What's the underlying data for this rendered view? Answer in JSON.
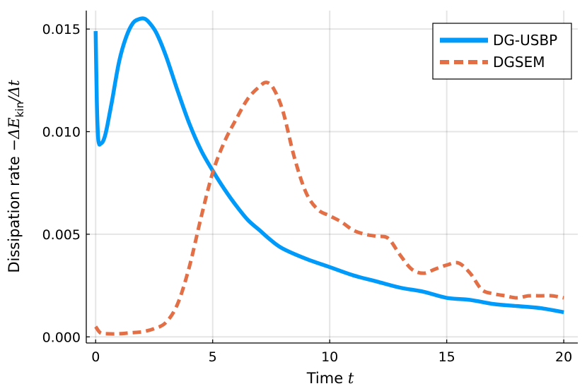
{
  "chart_data": {
    "type": "line",
    "xlabel": {
      "text": "Time ",
      "math": "t"
    },
    "ylabel": {
      "text": "Dissipation rate ",
      "math": "−ΔE",
      "sub": "kin",
      "math2": "/Δt"
    },
    "xlim": [
      -0.4,
      20.6
    ],
    "ylim": [
      -0.0003,
      0.0159
    ],
    "xticks": [
      0,
      5,
      10,
      15,
      20
    ],
    "xtick_labels": [
      "0",
      "5",
      "10",
      "15",
      "20"
    ],
    "yticks": [
      0.0,
      0.005,
      0.01,
      0.015
    ],
    "ytick_labels": [
      "0.000",
      "0.005",
      "0.010",
      "0.015"
    ],
    "grid": true,
    "legend_position": "top-right",
    "series": [
      {
        "name": "DG-USBP",
        "color": "#009AFA",
        "style": "solid",
        "x": [
          0,
          0.05,
          0.1,
          0.15,
          0.2,
          0.3,
          0.4,
          0.5,
          0.7,
          1.0,
          1.3,
          1.6,
          1.9,
          2.1,
          2.3,
          2.6,
          3.0,
          3.5,
          4.0,
          4.5,
          5.0,
          5.5,
          6.0,
          6.5,
          7.0,
          7.5,
          8.0,
          9.0,
          10.0,
          11.0,
          12.0,
          13.0,
          14.0,
          15.0,
          16.0,
          17.0,
          18.0,
          19.0,
          20.0
        ],
        "y": [
          0.0149,
          0.0115,
          0.0098,
          0.0094,
          0.0094,
          0.0095,
          0.0098,
          0.0103,
          0.0115,
          0.0134,
          0.0146,
          0.0153,
          0.0155,
          0.0155,
          0.0153,
          0.0148,
          0.0137,
          0.012,
          0.0104,
          0.0091,
          0.0081,
          0.0072,
          0.0064,
          0.0057,
          0.0052,
          0.0047,
          0.0043,
          0.0038,
          0.0034,
          0.003,
          0.0027,
          0.0024,
          0.0022,
          0.0019,
          0.0018,
          0.0016,
          0.0015,
          0.0014,
          0.0012
        ]
      },
      {
        "name": "DGSEM",
        "color": "#E26F46",
        "style": "dashed",
        "x": [
          0,
          0.2,
          0.5,
          1.0,
          1.5,
          2.0,
          2.5,
          3.0,
          3.5,
          4.0,
          4.5,
          5.0,
          5.5,
          6.0,
          6.5,
          7.0,
          7.3,
          7.6,
          8.0,
          8.5,
          9.0,
          9.5,
          10.0,
          10.5,
          11.0,
          11.5,
          12.0,
          12.5,
          13.0,
          13.5,
          14.0,
          14.5,
          15.0,
          15.5,
          16.0,
          16.5,
          17.0,
          17.5,
          18.0,
          18.5,
          19.0,
          19.5,
          20.0
        ],
        "y": [
          0.0005,
          0.0002,
          0.00015,
          0.00015,
          0.0002,
          0.00025,
          0.0004,
          0.0007,
          0.0016,
          0.0034,
          0.0058,
          0.008,
          0.0095,
          0.0106,
          0.0116,
          0.0122,
          0.0124,
          0.0121,
          0.011,
          0.0087,
          0.007,
          0.0062,
          0.0059,
          0.0056,
          0.0052,
          0.005,
          0.0049,
          0.0048,
          0.004,
          0.0033,
          0.0031,
          0.0033,
          0.0035,
          0.0036,
          0.0031,
          0.0023,
          0.0021,
          0.002,
          0.0019,
          0.002,
          0.002,
          0.002,
          0.0019
        ]
      }
    ]
  }
}
